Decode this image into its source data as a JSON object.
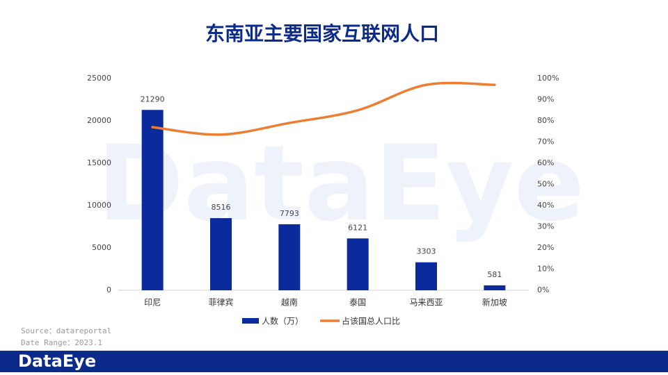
{
  "chart_data": {
    "type": "bar-line",
    "title": "东南亚主要国家互联网人口",
    "categories": [
      "印尼",
      "菲律宾",
      "越南",
      "泰国",
      "马来西亚",
      "新加坡"
    ],
    "series": [
      {
        "name": "人数（万）",
        "color": "#0b2a9c",
        "type": "bar",
        "values": [
          21290,
          8516,
          7793,
          6121,
          3303,
          581
        ]
      },
      {
        "name": "占该国总人口比",
        "color": "#ed7d31",
        "type": "line",
        "axis": "y2",
        "values": [
          77,
          73.5,
          79,
          85,
          97,
          97
        ]
      }
    ],
    "ylim": [
      0,
      25000
    ],
    "yticks": [
      0,
      5000,
      10000,
      15000,
      20000,
      25000
    ],
    "y2lim": [
      0,
      100
    ],
    "y2ticks": [
      {
        "value": 0,
        "label": "0%"
      },
      {
        "value": 10,
        "label": "10%"
      },
      {
        "value": 20,
        "label": "20%"
      },
      {
        "value": 30,
        "label": "30%"
      },
      {
        "value": 40,
        "label": "40%"
      },
      {
        "value": 50,
        "label": "50%"
      },
      {
        "value": 60,
        "label": "60%"
      },
      {
        "value": 70,
        "label": "70%"
      },
      {
        "value": 80,
        "label": "80%"
      },
      {
        "value": 90,
        "label": "90%"
      },
      {
        "value": 100,
        "label": "100%"
      }
    ],
    "grid": false,
    "legend": "bottom",
    "source": "Source：datareportal",
    "date_range": "Date Range：2023.1",
    "watermark": "DataEye",
    "logo": "DataEye"
  }
}
